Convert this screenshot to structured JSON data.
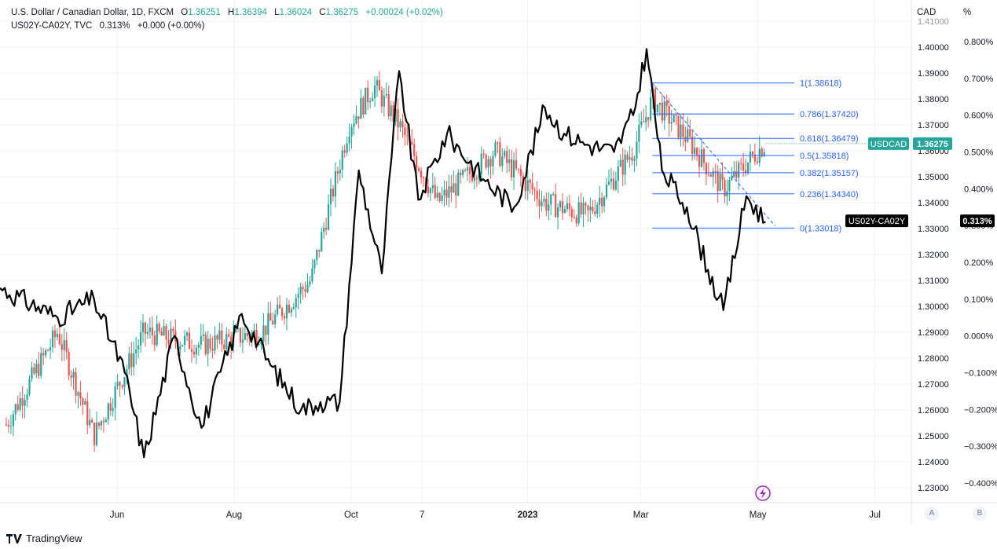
{
  "legend": {
    "main": {
      "symbol": "U.S. Dollar / Canadian Dollar, 1D, FXCM",
      "o_label": "O",
      "o": "1.36251",
      "h_label": "H",
      "h": "1.36394",
      "l_label": "L",
      "l": "1.36024",
      "c_label": "C",
      "c": "1.36275",
      "change": "+0.00024 (+0.02%)"
    },
    "overlay": {
      "symbol": "US02Y-CA02Y, TVC",
      "value": "0.313%",
      "change": "+0.000 (+0.00%)"
    }
  },
  "axes": {
    "left_unit": "CAD",
    "right_unit": "%",
    "price_ticks": [
      "1.41000",
      "1.40000",
      "1.39000",
      "1.38000",
      "1.37000",
      "1.36000",
      "1.35000",
      "1.34000",
      "1.33000",
      "1.32000",
      "1.31000",
      "1.30000",
      "1.29000",
      "1.28000",
      "1.27000",
      "1.26000",
      "1.25000",
      "1.24000",
      "1.23000"
    ],
    "pct_ticks": [
      "0.800%",
      "0.700%",
      "0.600%",
      "0.500%",
      "0.400%",
      "0.300%",
      "0.200%",
      "0.100%",
      "0.000%",
      "−0.100%",
      "−0.200%",
      "−0.300%",
      "−0.400%"
    ],
    "time_ticks": [
      "Jun",
      "Aug",
      "Oct",
      "7",
      "2023",
      "Mar",
      "May",
      "Jul"
    ]
  },
  "badges": {
    "usdcad_label": "USDCAD",
    "usdcad_value": "1.36275",
    "spread_label": "US02Y-CA02Y",
    "spread_value": "0.313%"
  },
  "fib_levels": [
    {
      "ratio": "1",
      "price": 1.38618,
      "text": "1(1.38618)"
    },
    {
      "ratio": "0.786",
      "price": 1.3742,
      "text": "0.786(1.37420)"
    },
    {
      "ratio": "0.618",
      "price": 1.36479,
      "text": "0.618(1.36479)"
    },
    {
      "ratio": "0.5",
      "price": 1.35818,
      "text": "0.5(1.35818)"
    },
    {
      "ratio": "0.382",
      "price": 1.35157,
      "text": "0.382(1.35157)"
    },
    {
      "ratio": "0.236",
      "price": 1.3434,
      "text": "0.236(1.34340)"
    },
    {
      "ratio": "0",
      "price": 1.33018,
      "text": "0(1.33018)"
    }
  ],
  "colors": {
    "up": "#26a69a",
    "down": "#ef5350",
    "spread": "#000000",
    "fib": "#2962ff",
    "grid": "#f0f3fa",
    "text": "#131722",
    "axis_text": "#131722",
    "logo": "#9c27b0"
  },
  "chart_data": {
    "type": "line",
    "title": "U.S. Dollar / Canadian Dollar, 1D, FXCM",
    "x_range": [
      "2022-04-01",
      "2023-07-20"
    ],
    "y_left": {
      "unit": "CAD",
      "ylim": [
        1.225,
        1.415
      ]
    },
    "y_right": {
      "unit": "%",
      "ylim": [
        -0.47,
        0.87
      ]
    },
    "grid": true,
    "series": [
      {
        "name": "USDCAD",
        "type": "candlestick",
        "axis": "left",
        "x": [
          "2022-04-01",
          "2022-05-01",
          "2022-05-20",
          "2022-06-15",
          "2022-07-15",
          "2022-08-15",
          "2022-09-10",
          "2022-09-30",
          "2022-10-13",
          "2022-10-26",
          "2022-11-15",
          "2022-12-15",
          "2023-01-10",
          "2023-02-01",
          "2023-02-25",
          "2023-03-07",
          "2023-03-25",
          "2023-04-13",
          "2023-05-01",
          "2023-05-05"
        ],
        "values": [
          1.25,
          1.29,
          1.25,
          1.29,
          1.285,
          1.29,
          1.31,
          1.37,
          1.385,
          1.37,
          1.34,
          1.36,
          1.34,
          1.335,
          1.36,
          1.38,
          1.365,
          1.345,
          1.36,
          1.36275
        ]
      },
      {
        "name": "US02Y-CA02Y",
        "type": "line",
        "axis": "right",
        "x": [
          "2022-04-01",
          "2022-05-01",
          "2022-05-20",
          "2022-06-05",
          "2022-06-15",
          "2022-07-01",
          "2022-07-15",
          "2022-08-05",
          "2022-08-20",
          "2022-09-05",
          "2022-09-15",
          "2022-09-25",
          "2022-10-05",
          "2022-10-17",
          "2022-10-26",
          "2022-11-05",
          "2022-11-20",
          "2022-12-10",
          "2022-12-25",
          "2023-01-10",
          "2023-01-20",
          "2023-02-01",
          "2023-02-15",
          "2023-02-25",
          "2023-03-04",
          "2023-03-12",
          "2023-03-25",
          "2023-04-05",
          "2023-04-13",
          "2023-04-25",
          "2023-05-05"
        ],
        "values": [
          0.13,
          0.05,
          0.1,
          -0.1,
          -0.33,
          0.0,
          -0.25,
          0.06,
          -0.08,
          -0.2,
          -0.18,
          -0.18,
          0.45,
          0.17,
          0.72,
          0.37,
          0.55,
          0.42,
          0.35,
          0.62,
          0.55,
          0.52,
          0.5,
          0.6,
          0.78,
          0.45,
          0.35,
          0.18,
          0.07,
          0.38,
          0.31
        ]
      }
    ],
    "annotations": {
      "fibonacci_retracement": {
        "from_price": 1.38618,
        "to_price": 1.33018,
        "from_date": "2023-03-07",
        "to_date": "2023-04-13"
      },
      "trendline": {
        "from_date": "2023-03-07",
        "from_price": 1.386,
        "to_date": "2023-05-10",
        "to_price": 1.331
      }
    }
  },
  "branding": {
    "name": "TradingView"
  },
  "scale_buttons": {
    "a": "A",
    "b": "B"
  }
}
